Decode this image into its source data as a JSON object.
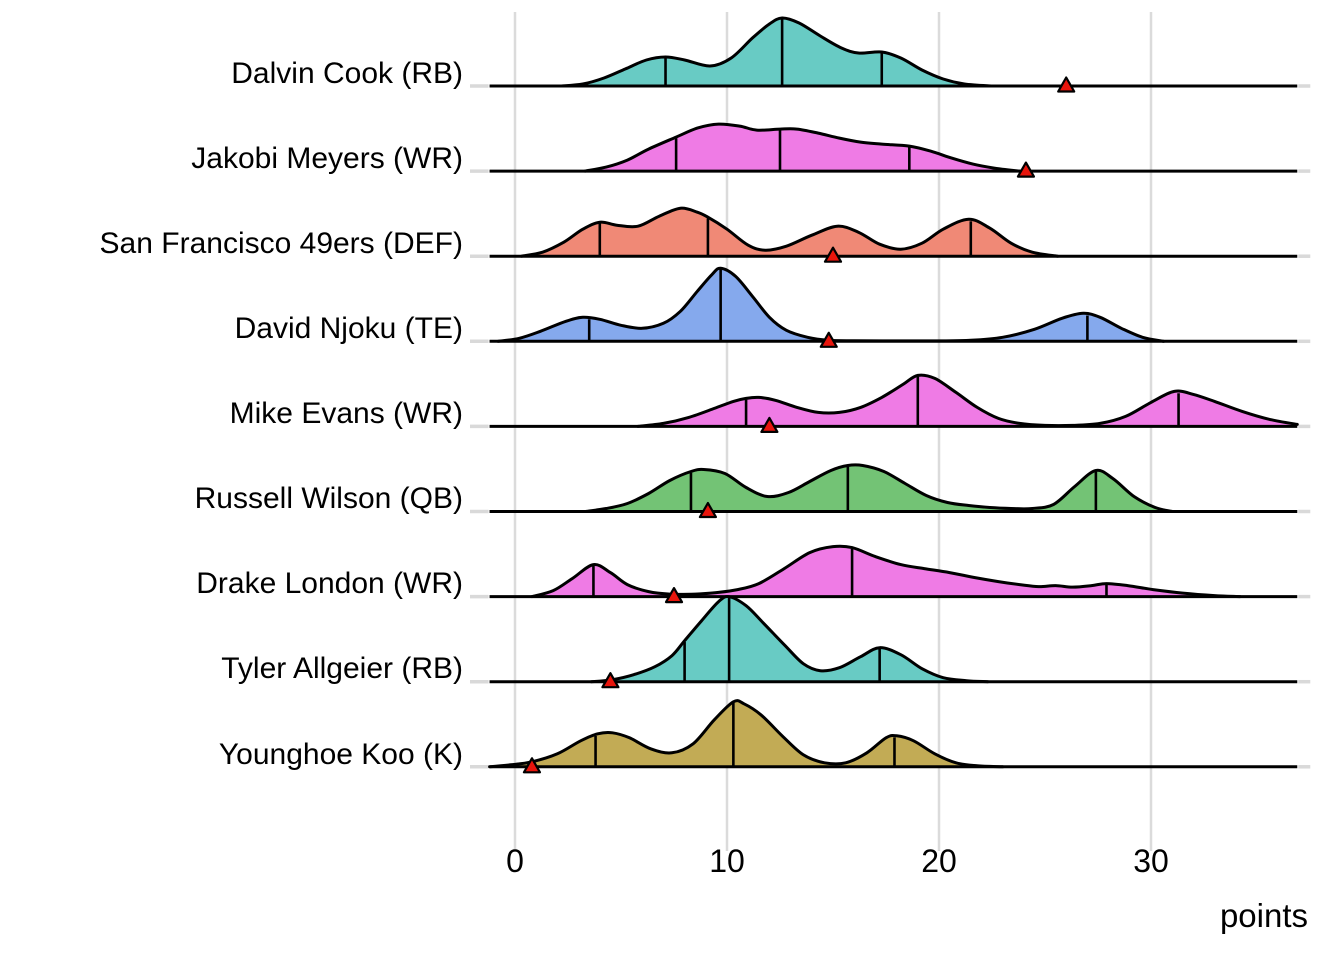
{
  "chart_data": {
    "type": "ridgeline",
    "xlabel": "points",
    "x_ticks": [
      0,
      10,
      20,
      30
    ],
    "x_range": [
      -1.2,
      36.9
    ],
    "gridline_color": "#DBDBDB",
    "axis_stub_color": "#D9D9D9",
    "line_color": "#000000",
    "marker": {
      "shape": "triangle-up",
      "fill": "#E8150C",
      "stroke": "#000000"
    },
    "rows": [
      {
        "label": "Dalvin Cook (RB)",
        "color": "#68CBC4",
        "quantiles": [
          7.1,
          12.6,
          17.3
        ],
        "actual": 26.0,
        "density": [
          [
            2.2,
            0
          ],
          [
            3.2,
            2
          ],
          [
            4.2,
            8
          ],
          [
            5.2,
            17
          ],
          [
            6.2,
            26
          ],
          [
            7.1,
            29
          ],
          [
            8.0,
            26
          ],
          [
            9.2,
            20
          ],
          [
            10.2,
            28
          ],
          [
            11.2,
            48
          ],
          [
            12.0,
            62
          ],
          [
            12.6,
            68
          ],
          [
            13.4,
            63
          ],
          [
            14.4,
            50
          ],
          [
            15.4,
            38
          ],
          [
            16.2,
            33
          ],
          [
            17.3,
            34
          ],
          [
            18.2,
            28
          ],
          [
            19.2,
            16
          ],
          [
            20.2,
            7
          ],
          [
            21.2,
            2
          ],
          [
            22.5,
            0
          ]
        ]
      },
      {
        "label": "Jakobi Meyers (WR)",
        "color": "#EF7BE5",
        "quantiles": [
          7.6,
          12.5,
          18.6
        ],
        "actual": 24.1,
        "density": [
          [
            3.3,
            0
          ],
          [
            4.3,
            4
          ],
          [
            5.3,
            11
          ],
          [
            6.3,
            22
          ],
          [
            7.6,
            34
          ],
          [
            8.6,
            43
          ],
          [
            9.6,
            47
          ],
          [
            10.6,
            45
          ],
          [
            11.4,
            41
          ],
          [
            12.5,
            42
          ],
          [
            13.3,
            42
          ],
          [
            14.3,
            38
          ],
          [
            15.3,
            33
          ],
          [
            16.3,
            29
          ],
          [
            17.3,
            27
          ],
          [
            18.6,
            25
          ],
          [
            19.6,
            20
          ],
          [
            20.6,
            13
          ],
          [
            21.6,
            7
          ],
          [
            22.6,
            3
          ],
          [
            23.8,
            0
          ]
        ]
      },
      {
        "label": "San Francisco 49ers (DEF)",
        "color": "#F08976",
        "quantiles": [
          4.0,
          9.1,
          21.5
        ],
        "actual": 15.0,
        "density": [
          [
            0.3,
            0
          ],
          [
            1.3,
            4
          ],
          [
            2.3,
            14
          ],
          [
            3.2,
            27
          ],
          [
            4.0,
            34
          ],
          [
            4.8,
            31
          ],
          [
            5.8,
            30
          ],
          [
            6.8,
            40
          ],
          [
            7.8,
            48
          ],
          [
            8.6,
            44
          ],
          [
            9.1,
            39
          ],
          [
            10.0,
            27
          ],
          [
            11.0,
            11
          ],
          [
            11.8,
            6
          ],
          [
            12.8,
            10
          ],
          [
            14.0,
            21
          ],
          [
            15.2,
            30
          ],
          [
            16.2,
            24
          ],
          [
            17.2,
            12
          ],
          [
            18.2,
            7
          ],
          [
            19.2,
            13
          ],
          [
            20.2,
            27
          ],
          [
            21.4,
            37
          ],
          [
            22.4,
            28
          ],
          [
            23.4,
            13
          ],
          [
            24.4,
            4
          ],
          [
            25.6,
            0
          ]
        ]
      },
      {
        "label": "David Njoku (TE)",
        "color": "#85A9ED",
        "quantiles": [
          3.5,
          9.7,
          27.0
        ],
        "actual": 14.8,
        "density": [
          [
            -0.8,
            0
          ],
          [
            0.2,
            3
          ],
          [
            1.2,
            10
          ],
          [
            2.4,
            20
          ],
          [
            3.2,
            24
          ],
          [
            4.0,
            22
          ],
          [
            5.0,
            16
          ],
          [
            6.0,
            13
          ],
          [
            7.0,
            18
          ],
          [
            7.8,
            30
          ],
          [
            8.6,
            50
          ],
          [
            9.3,
            67
          ],
          [
            9.7,
            73
          ],
          [
            10.4,
            65
          ],
          [
            11.2,
            45
          ],
          [
            12.0,
            24
          ],
          [
            12.8,
            11
          ],
          [
            13.8,
            4
          ],
          [
            14.8,
            1
          ],
          [
            16.0,
            0.5
          ],
          [
            18.0,
            0.4
          ],
          [
            20.0,
            0.4
          ],
          [
            21.5,
            1
          ],
          [
            23.0,
            4
          ],
          [
            24.5,
            12
          ],
          [
            25.8,
            23
          ],
          [
            26.8,
            28
          ],
          [
            27.6,
            24
          ],
          [
            28.6,
            13
          ],
          [
            29.6,
            4
          ],
          [
            30.6,
            0
          ]
        ]
      },
      {
        "label": "Mike Evans (WR)",
        "color": "#EF7BE5",
        "quantiles": [
          10.9,
          19.0,
          31.3
        ],
        "actual": 12.0,
        "density": [
          [
            5.8,
            0
          ],
          [
            7.0,
            3
          ],
          [
            8.2,
            9
          ],
          [
            9.4,
            18
          ],
          [
            10.3,
            25
          ],
          [
            10.9,
            28
          ],
          [
            11.5,
            29
          ],
          [
            12.3,
            26
          ],
          [
            13.3,
            19
          ],
          [
            14.3,
            14
          ],
          [
            15.3,
            14
          ],
          [
            16.3,
            19
          ],
          [
            17.3,
            29
          ],
          [
            18.3,
            42
          ],
          [
            19.0,
            51
          ],
          [
            19.8,
            48
          ],
          [
            20.8,
            34
          ],
          [
            21.8,
            19
          ],
          [
            22.8,
            8
          ],
          [
            23.8,
            3
          ],
          [
            25.0,
            1
          ],
          [
            26.3,
            1
          ],
          [
            27.6,
            3
          ],
          [
            28.8,
            10
          ],
          [
            30.0,
            24
          ],
          [
            31.1,
            35
          ],
          [
            32.0,
            32
          ],
          [
            33.0,
            25
          ],
          [
            34.3,
            15
          ],
          [
            35.6,
            7
          ],
          [
            36.9,
            2
          ]
        ]
      },
      {
        "label": "Russell Wilson (QB)",
        "color": "#73C375",
        "quantiles": [
          8.3,
          15.7,
          27.4
        ],
        "actual": 9.1,
        "density": [
          [
            3.3,
            0
          ],
          [
            4.3,
            3
          ],
          [
            5.3,
            8
          ],
          [
            6.3,
            18
          ],
          [
            7.3,
            31
          ],
          [
            8.3,
            40
          ],
          [
            8.9,
            42
          ],
          [
            9.9,
            38
          ],
          [
            10.9,
            24
          ],
          [
            11.9,
            15
          ],
          [
            12.9,
            19
          ],
          [
            13.9,
            30
          ],
          [
            14.9,
            41
          ],
          [
            15.7,
            46
          ],
          [
            16.4,
            46
          ],
          [
            17.4,
            40
          ],
          [
            18.4,
            28
          ],
          [
            19.4,
            16
          ],
          [
            20.4,
            9
          ],
          [
            21.4,
            6
          ],
          [
            22.4,
            4
          ],
          [
            23.4,
            3
          ],
          [
            24.4,
            3
          ],
          [
            25.4,
            7
          ],
          [
            26.4,
            25
          ],
          [
            27.4,
            41
          ],
          [
            28.2,
            33
          ],
          [
            29.2,
            15
          ],
          [
            30.2,
            4
          ],
          [
            31.0,
            0
          ]
        ]
      },
      {
        "label": "Drake London (WR)",
        "color": "#EF7BE5",
        "quantiles": [
          3.7,
          15.9,
          27.9
        ],
        "actual": 7.5,
        "density": [
          [
            0.8,
            0
          ],
          [
            1.8,
            6
          ],
          [
            2.7,
            18
          ],
          [
            3.7,
            32
          ],
          [
            4.5,
            24
          ],
          [
            5.3,
            12
          ],
          [
            6.3,
            5
          ],
          [
            7.3,
            2.5
          ],
          [
            8.5,
            2.5
          ],
          [
            9.5,
            4
          ],
          [
            10.5,
            7
          ],
          [
            11.5,
            13
          ],
          [
            12.7,
            28
          ],
          [
            13.9,
            44
          ],
          [
            15.0,
            50
          ],
          [
            15.9,
            49
          ],
          [
            17.0,
            40
          ],
          [
            18.2,
            32
          ],
          [
            19.3,
            28
          ],
          [
            20.5,
            24
          ],
          [
            21.7,
            19
          ],
          [
            22.8,
            15
          ],
          [
            23.8,
            12
          ],
          [
            24.7,
            10
          ],
          [
            25.5,
            11
          ],
          [
            26.3,
            9.5
          ],
          [
            27.2,
            11
          ],
          [
            27.9,
            13
          ],
          [
            28.9,
            11
          ],
          [
            30.1,
            7
          ],
          [
            31.5,
            3.5
          ],
          [
            33.0,
            1
          ],
          [
            34.2,
            0
          ]
        ]
      },
      {
        "label": "Tyler Allgeier (RB)",
        "color": "#68CBC4",
        "quantiles": [
          8.0,
          10.1,
          17.2
        ],
        "actual": 4.5,
        "density": [
          [
            3.6,
            0
          ],
          [
            4.6,
            2
          ],
          [
            5.6,
            7
          ],
          [
            6.6,
            15
          ],
          [
            7.4,
            26
          ],
          [
            8.0,
            41
          ],
          [
            8.8,
            61
          ],
          [
            9.6,
            80
          ],
          [
            10.1,
            85
          ],
          [
            10.9,
            76
          ],
          [
            11.7,
            59
          ],
          [
            12.7,
            37
          ],
          [
            13.6,
            18
          ],
          [
            14.4,
            11
          ],
          [
            15.3,
            14
          ],
          [
            16.3,
            25
          ],
          [
            17.2,
            34
          ],
          [
            18.2,
            27
          ],
          [
            19.2,
            13
          ],
          [
            20.2,
            4
          ],
          [
            21.3,
            1
          ],
          [
            22.3,
            0
          ]
        ]
      },
      {
        "label": "Younghoe Koo (K)",
        "color": "#C2AB55",
        "quantiles": [
          3.8,
          10.3,
          17.9
        ],
        "actual": 0.8,
        "density": [
          [
            -1.2,
            0
          ],
          [
            -0.2,
            2
          ],
          [
            0.8,
            5
          ],
          [
            2.0,
            13
          ],
          [
            3.1,
            26
          ],
          [
            3.9,
            33
          ],
          [
            4.6,
            34
          ],
          [
            5.4,
            29
          ],
          [
            6.4,
            18
          ],
          [
            7.4,
            14
          ],
          [
            8.4,
            23
          ],
          [
            9.4,
            47
          ],
          [
            10.3,
            65
          ],
          [
            10.8,
            63
          ],
          [
            11.6,
            52
          ],
          [
            12.6,
            31
          ],
          [
            13.6,
            12
          ],
          [
            14.6,
            4
          ],
          [
            15.6,
            4
          ],
          [
            16.6,
            14
          ],
          [
            17.5,
            29
          ],
          [
            18.0,
            31
          ],
          [
            18.8,
            26
          ],
          [
            19.8,
            13
          ],
          [
            20.8,
            4
          ],
          [
            21.8,
            1
          ],
          [
            23.0,
            0
          ]
        ]
      }
    ]
  }
}
